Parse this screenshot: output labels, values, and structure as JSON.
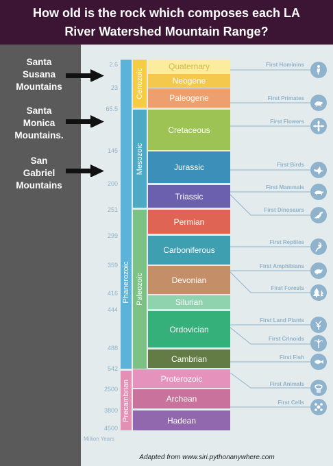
{
  "header": {
    "title_line1": "How old is the rock which composes each LA",
    "title_line2": "River Watershed Mountain Range?"
  },
  "ranges": [
    {
      "line1": "Santa",
      "line2": "Susana",
      "line3": "Mountains"
    },
    {
      "line1": "Santa",
      "line2": "Monica",
      "line3": "Mountains."
    },
    {
      "line1": "San",
      "line2": "Gabriel",
      "line3": "Mountains"
    }
  ],
  "ticks": [
    "2.6",
    "23",
    "65.5",
    "145",
    "200",
    "251",
    "299",
    "359",
    "416",
    "444",
    "488",
    "542",
    "2500",
    "3800",
    "4500"
  ],
  "axis_unit": "Million Years",
  "eons": {
    "phanerozoic": "Phanerozoic",
    "precambrian": "Precambrian"
  },
  "eras": {
    "cenozoic": "Cenozoic",
    "mesozoic": "Mesozoic",
    "paleozoic": "Paleozoic"
  },
  "periods": [
    "Quaternary",
    "Neogene",
    "Paleogene",
    "Cretaceous",
    "Jurassic",
    "Triassic",
    "Permian",
    "Carboniferous",
    "Devonian",
    "Silurian",
    "Ordovician",
    "Cambrian"
  ],
  "precambrian_eons": [
    "Proterozoic",
    "Archean",
    "Hadean"
  ],
  "events": [
    "First Hominins",
    "First Primates",
    "First Flowers",
    "First Birds",
    "First Mammals",
    "First Dinosaurs",
    "First Reptiles",
    "First Amphibians",
    "First Forests",
    "First Land Plants",
    "First Crinoids",
    "First Fish",
    "First Animals",
    "First Cells"
  ],
  "icons": [
    "hominin-icon",
    "primate-icon",
    "flower-icon",
    "bird-icon",
    "mammal-icon",
    "dinosaur-icon",
    "reptile-icon",
    "amphibian-icon",
    "forest-icon",
    "land-plant-icon",
    "crinoid-icon",
    "fish-icon",
    "animal-icon",
    "cell-icon"
  ],
  "colors": {
    "header_bg": "#3c1434",
    "side_panel": "#5a5a5a",
    "background": "#e3ebec",
    "phanerozoic": "#5cb3da",
    "precambrian": "#e58fb5",
    "cenozoic": "#f5cd45",
    "mesozoic": "#4da9c4",
    "paleozoic": "#7cc285",
    "quaternary": "#fbed9d",
    "neogene": "#f4c84c",
    "paleogene": "#eda06d",
    "cretaceous": "#9cc354",
    "jurassic": "#3b8fb9",
    "triassic": "#6a60ae",
    "permian": "#df6453",
    "carboniferous": "#3d9fb0",
    "devonian": "#c38e68",
    "silurian": "#8fd2ae",
    "ordovician": "#35b07b",
    "cambrian": "#637b45",
    "proterozoic": "#e592bd",
    "archean": "#c9739c",
    "hadean": "#9167ad",
    "accent_text": "#8fb3cc"
  },
  "credit": "Adapted from www.siri.pythonanywhere.com"
}
